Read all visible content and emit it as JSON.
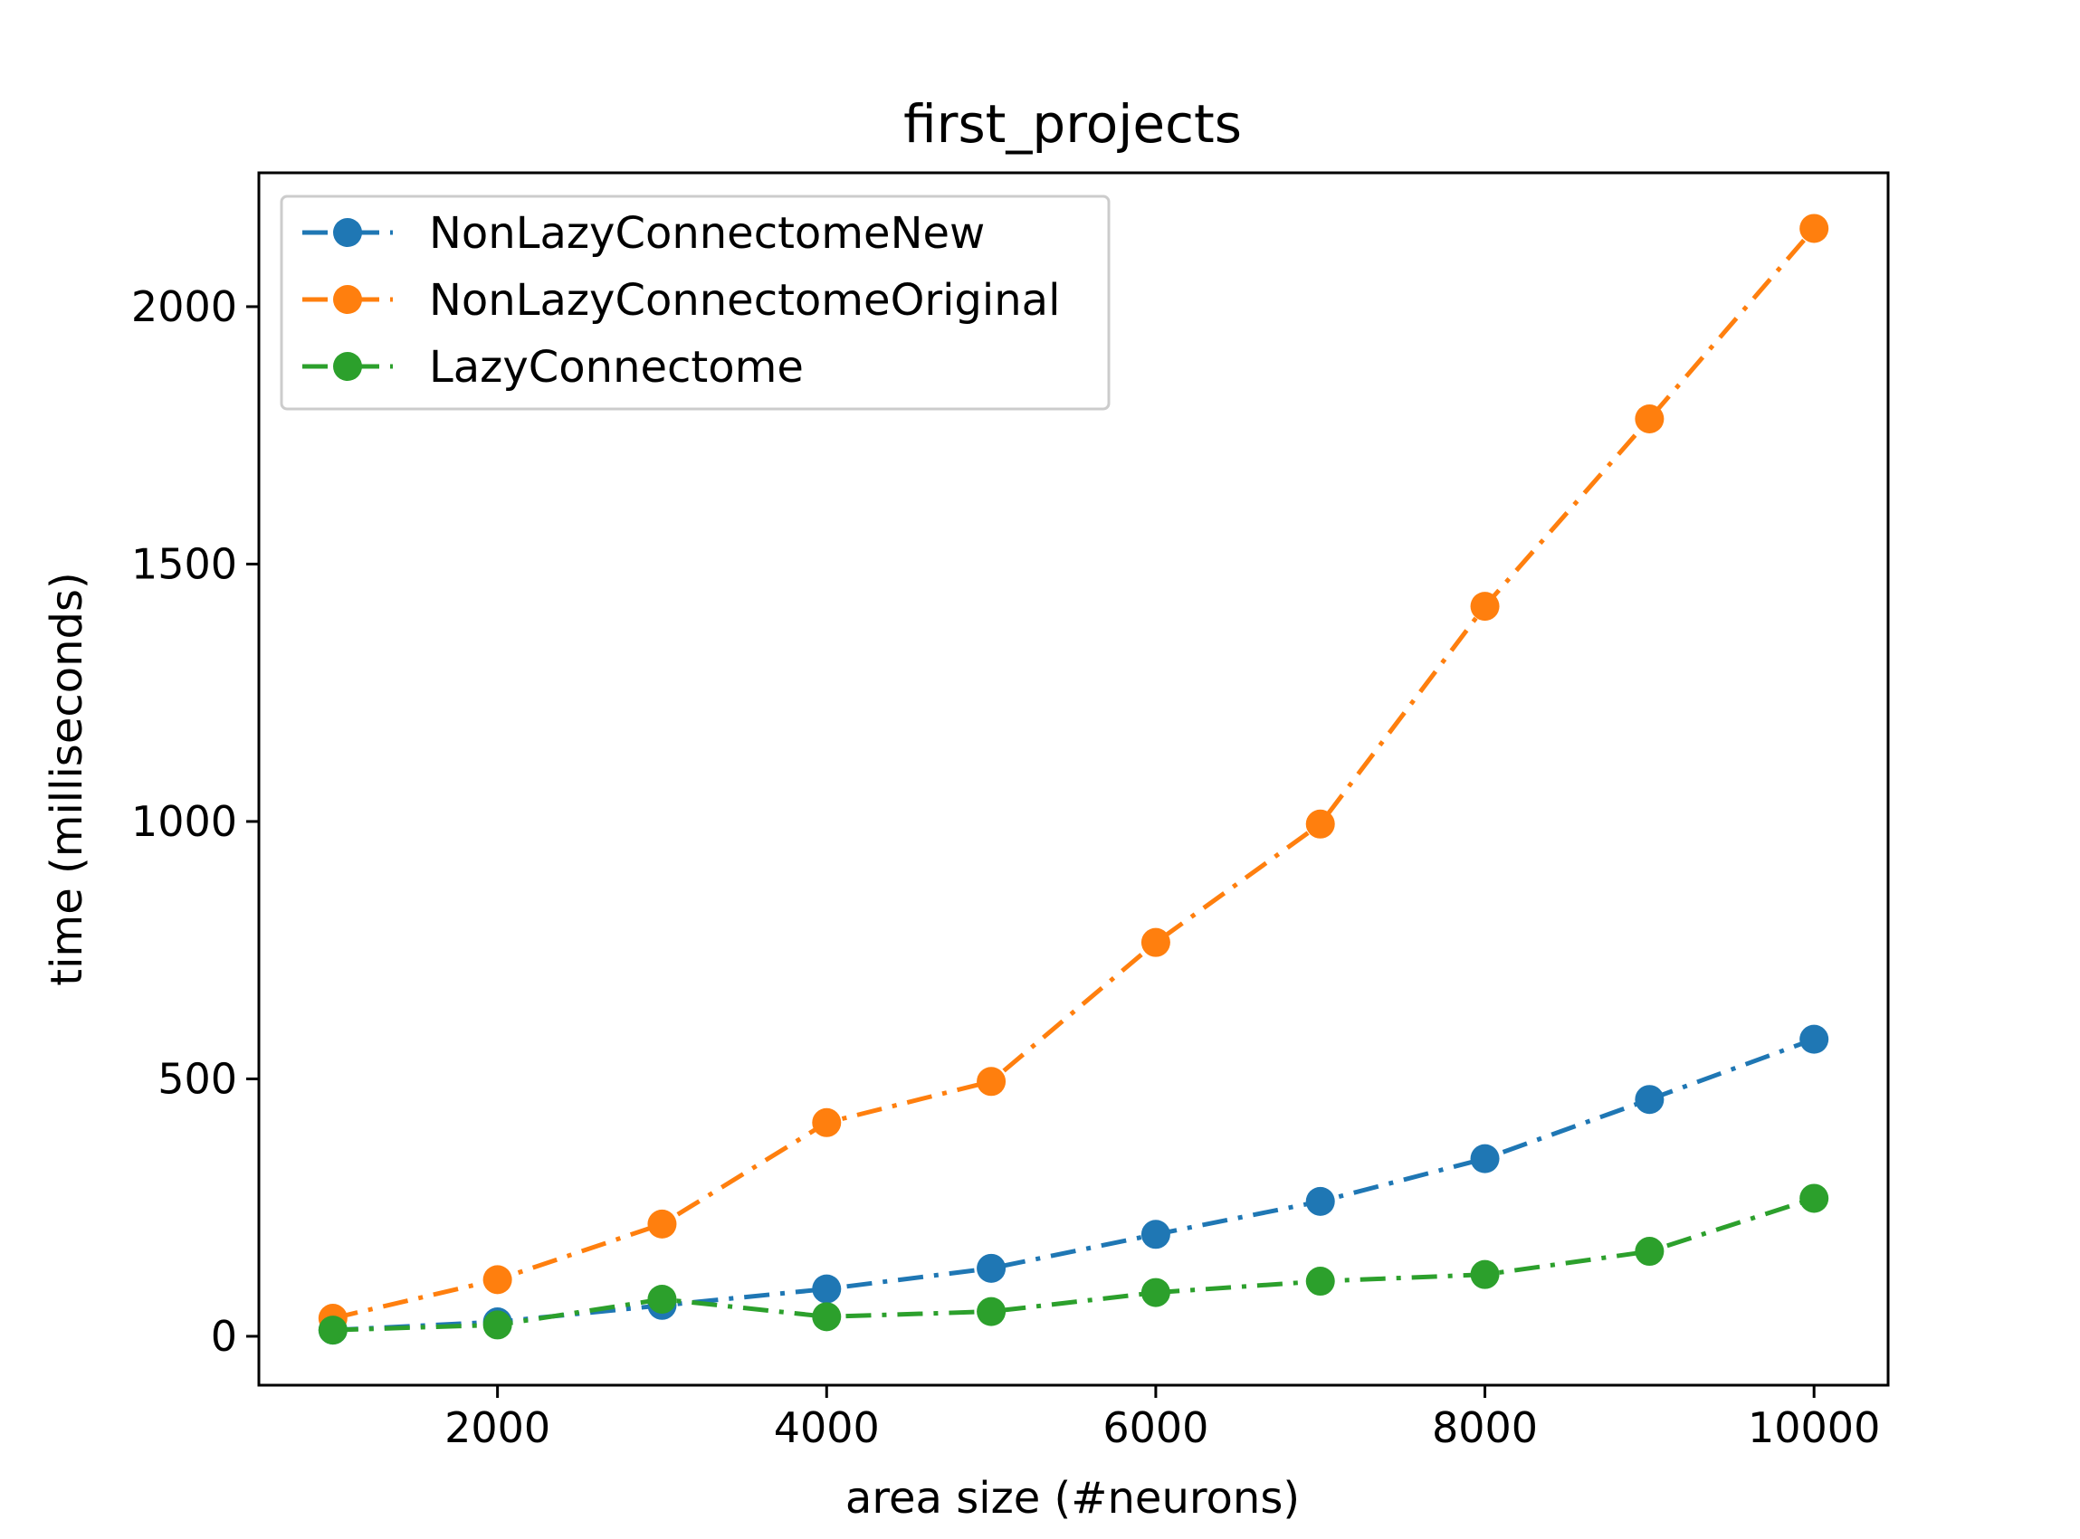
{
  "chart_data": {
    "type": "line",
    "title": "first_projects",
    "xlabel": "area size (#neurons)",
    "ylabel": "time (milliseconds)",
    "xlim": [
      550,
      10450
    ],
    "ylim": [
      -95,
      2260
    ],
    "xticks": [
      2000,
      4000,
      6000,
      8000,
      10000
    ],
    "yticks": [
      0,
      500,
      1000,
      1500,
      2000
    ],
    "grid": false,
    "legend_position": "upper-left",
    "x": [
      1000,
      2000,
      3000,
      4000,
      5000,
      6000,
      7000,
      8000,
      9000,
      10000
    ],
    "series": [
      {
        "name": "NonLazyConnectomeNew",
        "color": "#1f77b4",
        "linestyle": "dashdot",
        "marker": "circle",
        "values": [
          12,
          28,
          60,
          92,
          132,
          198,
          262,
          345,
          460,
          577
        ]
      },
      {
        "name": "NonLazyConnectomeOriginal",
        "color": "#ff7f0e",
        "linestyle": "dashdot",
        "marker": "circle",
        "values": [
          35,
          110,
          218,
          415,
          495,
          765,
          995,
          1418,
          1782,
          2152
        ]
      },
      {
        "name": "LazyConnectome",
        "color": "#2ca02c",
        "linestyle": "dashdot",
        "marker": "circle",
        "values": [
          12,
          22,
          72,
          38,
          48,
          85,
          107,
          120,
          165,
          268
        ]
      }
    ]
  }
}
